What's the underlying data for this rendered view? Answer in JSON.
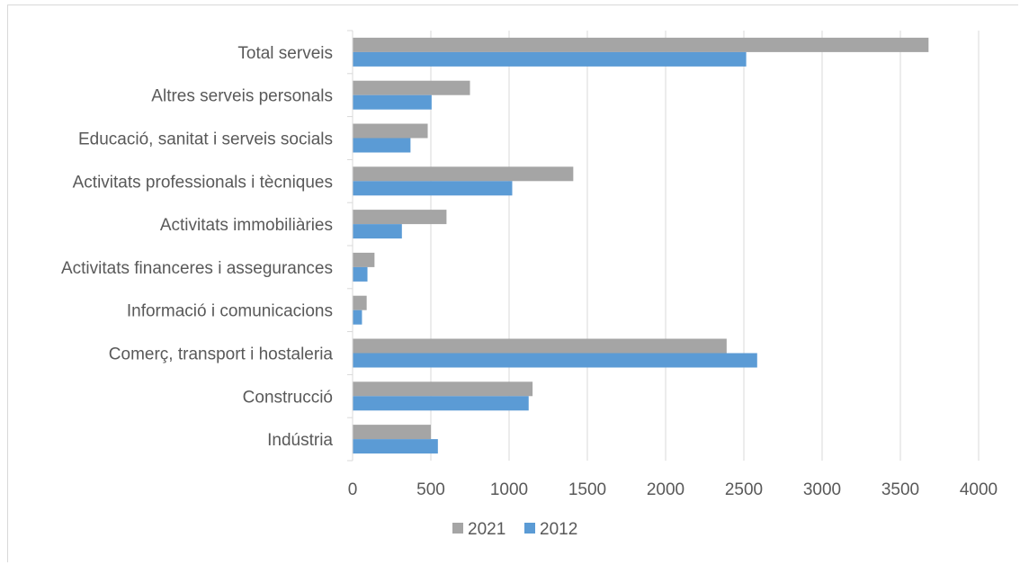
{
  "chart_data": {
    "type": "bar",
    "orientation": "horizontal",
    "categories": [
      "Total serveis",
      "Altres serveis personals",
      "Educació, sanitat i serveis socials",
      "Activitats professionals i tècniques",
      "Activitats immobiliàries",
      "Activitats financeres i assegurances",
      "Informació i comunicacions",
      "Comerç, transport i hostaleria",
      "Construcció",
      "Indústria"
    ],
    "series": [
      {
        "name": "2021",
        "color": "#a5a5a5",
        "values": [
          3680,
          750,
          480,
          1410,
          600,
          140,
          90,
          2390,
          1150,
          500
        ]
      },
      {
        "name": "2012",
        "color": "#5b9bd5",
        "values": [
          2515,
          505,
          370,
          1020,
          315,
          95,
          60,
          2585,
          1125,
          545
        ]
      }
    ],
    "xlim": [
      0,
      4000
    ],
    "ticks": [
      "0",
      "500",
      "1000",
      "1500",
      "2000",
      "2500",
      "3000",
      "3500",
      "4000"
    ],
    "tick_values": [
      0,
      500,
      1000,
      1500,
      2000,
      2500,
      3000,
      3500,
      4000
    ],
    "gridlines": "vertical",
    "legend_position": "bottom",
    "title": "",
    "xlabel": "",
    "ylabel": ""
  }
}
